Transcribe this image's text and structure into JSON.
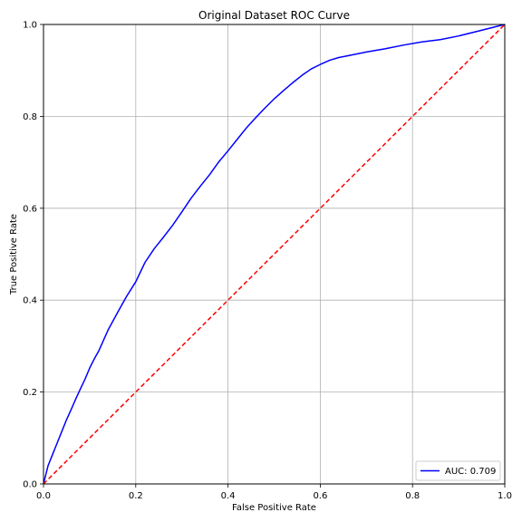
{
  "chart_data": {
    "type": "line",
    "title": "Original Dataset ROC Curve",
    "xlabel": "False Positive Rate",
    "ylabel": "True Positive Rate",
    "xlim": [
      0,
      1
    ],
    "ylim": [
      0,
      1
    ],
    "x_ticks": [
      "0.0",
      "0.2",
      "0.4",
      "0.6",
      "0.8",
      "1.0"
    ],
    "y_ticks": [
      "0.0",
      "0.2",
      "0.4",
      "0.6",
      "0.8",
      "1.0"
    ],
    "grid": true,
    "legend_placement": "lower-right",
    "series": [
      {
        "name": "AUC: 0.709",
        "color": "#0000ff",
        "style": "solid",
        "x": [
          0.0,
          0.01,
          0.02,
          0.03,
          0.04,
          0.05,
          0.06,
          0.07,
          0.08,
          0.09,
          0.1,
          0.11,
          0.12,
          0.14,
          0.16,
          0.18,
          0.2,
          0.22,
          0.24,
          0.26,
          0.28,
          0.3,
          0.32,
          0.34,
          0.36,
          0.38,
          0.4,
          0.42,
          0.44,
          0.46,
          0.48,
          0.5,
          0.52,
          0.54,
          0.56,
          0.58,
          0.6,
          0.62,
          0.64,
          0.66,
          0.7,
          0.74,
          0.78,
          0.82,
          0.86,
          0.9,
          0.94,
          0.98,
          1.0
        ],
        "y": [
          0.0,
          0.04,
          0.065,
          0.09,
          0.115,
          0.14,
          0.162,
          0.185,
          0.207,
          0.228,
          0.252,
          0.272,
          0.29,
          0.335,
          0.372,
          0.408,
          0.44,
          0.482,
          0.512,
          0.537,
          0.563,
          0.592,
          0.622,
          0.648,
          0.673,
          0.701,
          0.725,
          0.75,
          0.775,
          0.797,
          0.818,
          0.838,
          0.856,
          0.873,
          0.889,
          0.903,
          0.913,
          0.922,
          0.928,
          0.932,
          0.94,
          0.947,
          0.955,
          0.962,
          0.967,
          0.975,
          0.985,
          0.995,
          1.0
        ]
      },
      {
        "name": "",
        "color": "#ff0000",
        "style": "dashed",
        "x": [
          0,
          1
        ],
        "y": [
          0,
          1
        ]
      }
    ]
  },
  "colors": {
    "roc_line": "#0000ff",
    "diagonal_line": "#ff0000",
    "grid": "#b0b0b0",
    "axes": "#000000"
  }
}
